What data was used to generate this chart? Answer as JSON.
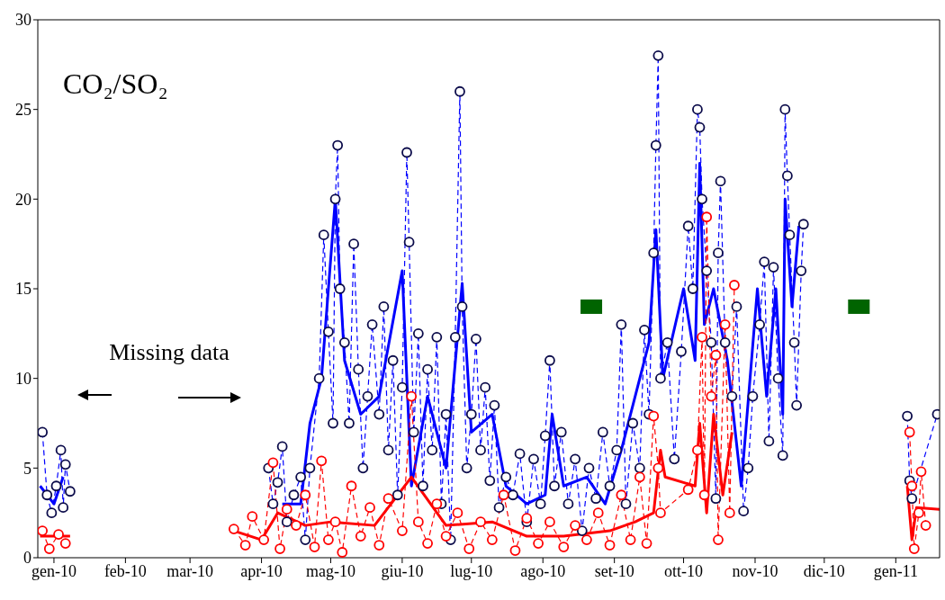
{
  "chart_data": {
    "type": "line",
    "title": "CO₂/SO₂",
    "annotations": [
      "Missing data"
    ],
    "xlim": [
      "2009-12-25",
      "2011-01-20"
    ],
    "xticks": [
      {
        "value": "2010-01-01",
        "label": "gen-10"
      },
      {
        "value": "2010-02-01",
        "label": "feb-10"
      },
      {
        "value": "2010-03-01",
        "label": "mar-10"
      },
      {
        "value": "2010-04-01",
        "label": "apr-10"
      },
      {
        "value": "2010-05-01",
        "label": "mag-10"
      },
      {
        "value": "2010-06-01",
        "label": "giu-10"
      },
      {
        "value": "2010-07-01",
        "label": "lug-10"
      },
      {
        "value": "2010-08-01",
        "label": "ago-10"
      },
      {
        "value": "2010-09-01",
        "label": "set-10"
      },
      {
        "value": "2010-10-01",
        "label": "ott-10"
      },
      {
        "value": "2010-11-01",
        "label": "nov-10"
      },
      {
        "value": "2010-12-01",
        "label": "dic-10"
      },
      {
        "value": "2011-01-01",
        "label": "gen-11"
      }
    ],
    "ylim": [
      0,
      30
    ],
    "yticks": [
      0,
      5,
      10,
      15,
      20,
      25,
      30
    ],
    "grid": false,
    "legend": false,
    "series": [
      {
        "color": "#0000ff",
        "marker": "none",
        "line_style": "solid",
        "x": [
          "2009-12-26",
          "2010-01-01",
          "2010-01-05",
          "2010-02-01",
          "2010-04-10",
          "2010-04-18",
          "2010-04-22",
          "2010-04-27",
          "2010-05-03",
          "2010-05-07",
          "2010-05-14",
          "2010-05-22",
          "2010-06-01",
          "2010-06-05",
          "2010-06-12",
          "2010-06-20",
          "2010-06-27",
          "2010-07-01",
          "2010-07-10",
          "2010-07-16",
          "2010-07-25",
          "2010-08-02",
          "2010-08-05",
          "2010-08-10",
          "2010-08-20",
          "2010-08-28",
          "2010-09-04",
          "2010-09-10",
          "2010-09-16",
          "2010-09-19",
          "2010-09-22",
          "2010-10-01",
          "2010-10-06",
          "2010-10-08",
          "2010-10-10",
          "2010-10-14",
          "2010-10-20",
          "2010-10-26",
          "2010-11-02",
          "2010-11-06",
          "2010-11-10",
          "2010-11-13",
          "2010-11-14",
          "2010-11-17",
          "2010-11-20"
        ],
        "values": [
          4,
          3,
          4.5,
          null,
          3,
          3,
          7.5,
          10,
          20,
          11,
          8,
          9,
          16,
          4,
          9,
          5,
          15.3,
          7,
          8,
          4,
          3,
          3.5,
          8,
          4,
          4.5,
          3,
          6,
          9,
          12,
          18.3,
          10,
          15,
          11,
          22,
          13,
          15,
          11,
          4,
          15,
          9,
          15,
          8,
          20,
          14,
          18.5
        ]
      },
      {
        "color": "#0000ff",
        "marker": "circle",
        "line_style": "dashed",
        "x": [
          "2009-12-27",
          "2009-12-29",
          "2009-12-31",
          "2010-01-02",
          "2010-01-04",
          "2010-01-05",
          "2010-01-06",
          "2010-01-08",
          "2010-02-01",
          "2010-04-04",
          "2010-04-06",
          "2010-04-08",
          "2010-04-10",
          "2010-04-12",
          "2010-04-15",
          "2010-04-18",
          "2010-04-20",
          "2010-04-22",
          "2010-04-26",
          "2010-04-28",
          "2010-04-30",
          "2010-05-02",
          "2010-05-03",
          "2010-05-04",
          "2010-05-05",
          "2010-05-07",
          "2010-05-09",
          "2010-05-11",
          "2010-05-13",
          "2010-05-15",
          "2010-05-17",
          "2010-05-19",
          "2010-05-22",
          "2010-05-24",
          "2010-05-26",
          "2010-05-28",
          "2010-05-30",
          "2010-06-01",
          "2010-06-03",
          "2010-06-04",
          "2010-06-06",
          "2010-06-08",
          "2010-06-10",
          "2010-06-12",
          "2010-06-14",
          "2010-06-16",
          "2010-06-18",
          "2010-06-20",
          "2010-06-22",
          "2010-06-24",
          "2010-06-26",
          "2010-06-27",
          "2010-06-29",
          "2010-07-01",
          "2010-07-03",
          "2010-07-05",
          "2010-07-07",
          "2010-07-09",
          "2010-07-11",
          "2010-07-13",
          "2010-07-16",
          "2010-07-19",
          "2010-07-22",
          "2010-07-25",
          "2010-07-28",
          "2010-07-31",
          "2010-08-02",
          "2010-08-04",
          "2010-08-06",
          "2010-08-09",
          "2010-08-12",
          "2010-08-15",
          "2010-08-18",
          "2010-08-21",
          "2010-08-24",
          "2010-08-27",
          "2010-08-30",
          "2010-09-02",
          "2010-09-04",
          "2010-09-06",
          "2010-09-09",
          "2010-09-12",
          "2010-09-14",
          "2010-09-16",
          "2010-09-18",
          "2010-09-19",
          "2010-09-20",
          "2010-09-21",
          "2010-09-24",
          "2010-09-27",
          "2010-09-30",
          "2010-10-03",
          "2010-10-05",
          "2010-10-07",
          "2010-10-08",
          "2010-10-09",
          "2010-10-11",
          "2010-10-13",
          "2010-10-15",
          "2010-10-16",
          "2010-10-17",
          "2010-10-19",
          "2010-10-22",
          "2010-10-24",
          "2010-10-27",
          "2010-10-29",
          "2010-10-31",
          "2010-11-03",
          "2010-11-05",
          "2010-11-07",
          "2010-11-09",
          "2010-11-11",
          "2010-11-13",
          "2010-11-14",
          "2010-11-15",
          "2010-11-16",
          "2010-11-18",
          "2010-11-19",
          "2010-11-21",
          "2010-11-22",
          "2010-12-01",
          "2011-01-06",
          "2011-01-07",
          "2011-01-08",
          "2011-01-19"
        ],
        "values": [
          7,
          3.5,
          2.5,
          4,
          6,
          2.8,
          5.2,
          3.7,
          null,
          5,
          3,
          4.2,
          6.2,
          2,
          3.5,
          4.5,
          1,
          5,
          10,
          18,
          12.6,
          7.5,
          20,
          23,
          15,
          12,
          7.5,
          17.5,
          10.5,
          5,
          9,
          13,
          8,
          14,
          6,
          11,
          3.5,
          9.5,
          22.6,
          17.6,
          7,
          12.5,
          4,
          10.5,
          6,
          12.3,
          3,
          8,
          1,
          12.3,
          26,
          14,
          5,
          8,
          12.2,
          6,
          9.5,
          4.3,
          8.5,
          2.8,
          4.5,
          3.5,
          5.8,
          2,
          5.5,
          3,
          6.8,
          11,
          4,
          7,
          3,
          5.5,
          1.5,
          5,
          3.3,
          7,
          4,
          6,
          13,
          3,
          7.5,
          5,
          12.7,
          8,
          17,
          23,
          28,
          10,
          12,
          5.5,
          11.5,
          18.5,
          15,
          25,
          24,
          20,
          16,
          12,
          3.3,
          17,
          21,
          12,
          9,
          14,
          2.6,
          5,
          9,
          13,
          16.5,
          6.5,
          16.2,
          10,
          5.7,
          25,
          21.3,
          18,
          12,
          8.5,
          16,
          18.6,
          null,
          7.9,
          4.3,
          3.3,
          8
        ]
      },
      {
        "color": "#ff0000",
        "marker": "none",
        "line_style": "solid",
        "x": [
          "2009-12-26",
          "2010-01-08",
          "2010-02-01",
          "2010-03-20",
          "2010-04-01",
          "2010-04-08",
          "2010-04-20",
          "2010-05-01",
          "2010-05-20",
          "2010-06-05",
          "2010-06-20",
          "2010-07-10",
          "2010-07-25",
          "2010-08-10",
          "2010-08-30",
          "2010-09-10",
          "2010-09-18",
          "2010-09-21",
          "2010-09-23",
          "2010-10-06",
          "2010-10-08",
          "2010-10-11",
          "2010-10-14",
          "2010-10-18",
          "2010-10-22",
          "2010-12-01",
          "2011-01-06",
          "2011-01-08",
          "2011-01-10",
          "2011-01-20"
        ],
        "values": [
          1.2,
          1.2,
          null,
          1.5,
          1,
          2.5,
          1.8,
          2,
          1.8,
          4.5,
          1.8,
          2,
          1.2,
          1.2,
          1.5,
          2,
          2.5,
          6,
          4.5,
          4,
          7.5,
          2.5,
          8,
          3.5,
          7,
          null,
          4,
          1,
          2.8,
          2.7
        ]
      },
      {
        "color": "#ff0000",
        "marker": "circle",
        "line_style": "dashed",
        "x": [
          "2009-12-27",
          "2009-12-30",
          "2010-01-03",
          "2010-01-06",
          "2010-02-01",
          "2010-03-20",
          "2010-03-25",
          "2010-03-28",
          "2010-04-02",
          "2010-04-06",
          "2010-04-09",
          "2010-04-12",
          "2010-04-16",
          "2010-04-20",
          "2010-04-24",
          "2010-04-27",
          "2010-04-30",
          "2010-05-03",
          "2010-05-06",
          "2010-05-10",
          "2010-05-14",
          "2010-05-18",
          "2010-05-22",
          "2010-05-26",
          "2010-06-01",
          "2010-06-05",
          "2010-06-08",
          "2010-06-12",
          "2010-06-16",
          "2010-06-20",
          "2010-06-25",
          "2010-06-30",
          "2010-07-05",
          "2010-07-10",
          "2010-07-15",
          "2010-07-20",
          "2010-07-25",
          "2010-07-30",
          "2010-08-04",
          "2010-08-10",
          "2010-08-15",
          "2010-08-20",
          "2010-08-25",
          "2010-08-30",
          "2010-09-04",
          "2010-09-08",
          "2010-09-12",
          "2010-09-15",
          "2010-09-18",
          "2010-09-20",
          "2010-09-21",
          "2010-10-03",
          "2010-10-07",
          "2010-10-09",
          "2010-10-10",
          "2010-10-11",
          "2010-10-13",
          "2010-10-15",
          "2010-10-16",
          "2010-10-19",
          "2010-10-21",
          "2010-10-23",
          "2010-12-01",
          "2011-01-07",
          "2011-01-08",
          "2011-01-09",
          "2011-01-11",
          "2011-01-12",
          "2011-01-14"
        ],
        "values": [
          1.5,
          0.5,
          1.3,
          0.8,
          null,
          1.6,
          0.7,
          2.3,
          1,
          5.3,
          0.5,
          2.7,
          1.8,
          3.5,
          0.6,
          5.4,
          1,
          2,
          0.3,
          4,
          1.2,
          2.8,
          0.7,
          3.3,
          1.5,
          9,
          2,
          0.8,
          3,
          1.2,
          2.5,
          0.5,
          2,
          1,
          3.5,
          0.4,
          2.2,
          0.8,
          2,
          0.6,
          1.8,
          1,
          2.5,
          0.7,
          3.5,
          1,
          4.5,
          0.8,
          7.9,
          5,
          2.5,
          3.8,
          6,
          12.3,
          3.5,
          19,
          9,
          11.3,
          1,
          13,
          2.5,
          15.2,
          null,
          7,
          4,
          0.5,
          2.5,
          4.8,
          1.8
        ]
      },
      {
        "type": "scatter",
        "color": "#006400",
        "marker": "square",
        "x": [
          "2010-08-22",
          "2010-12-16"
        ],
        "values": [
          14,
          14
        ]
      }
    ]
  }
}
